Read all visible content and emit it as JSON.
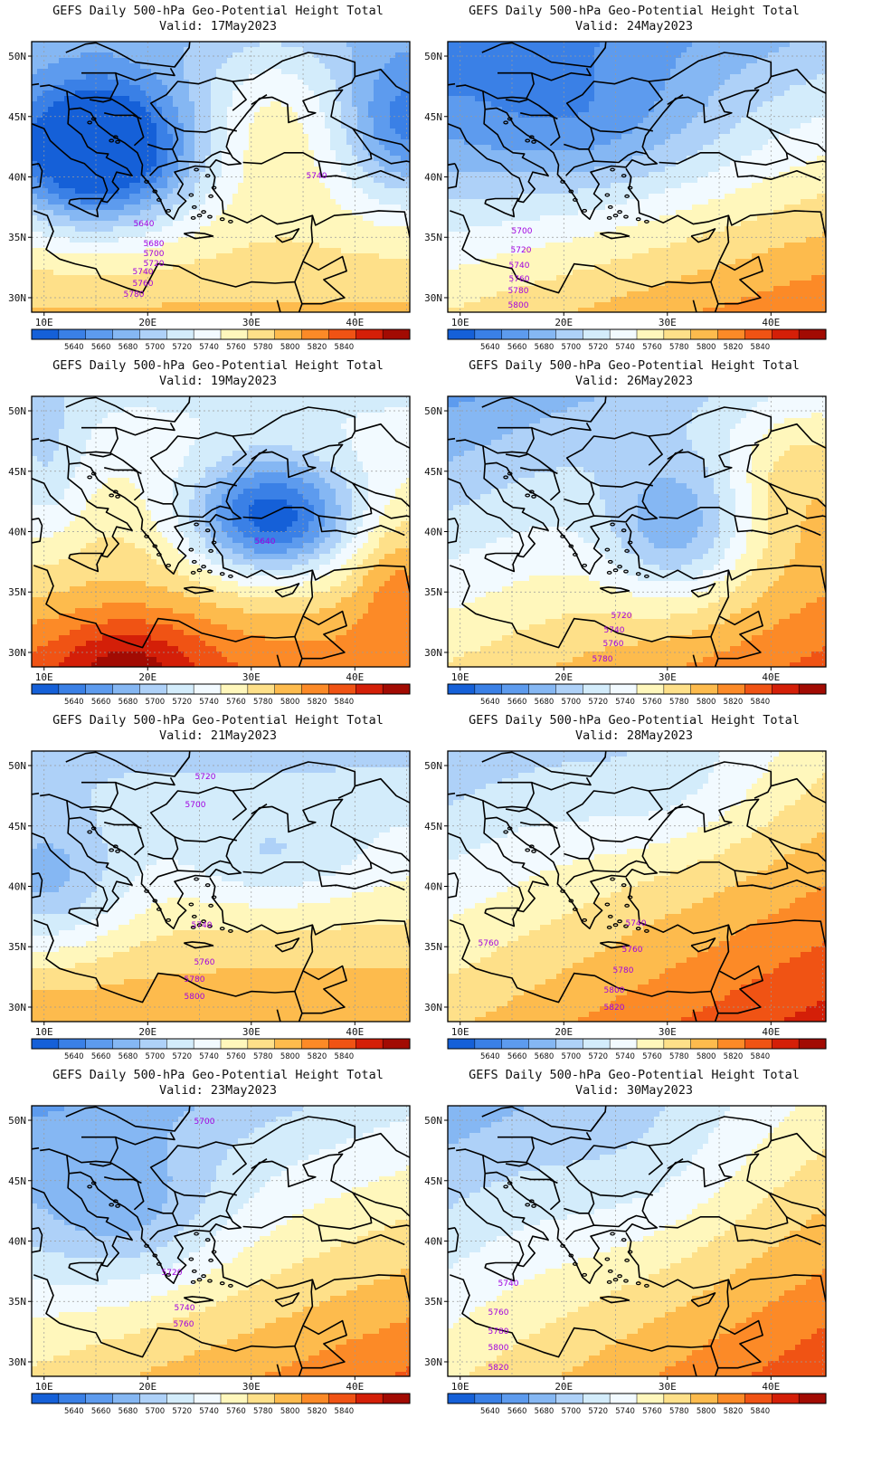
{
  "panel_title": "GEFS Daily 500-hPa Geo-Potential Height Total",
  "valid_prefix": "Valid:",
  "lat_labels": [
    "50N",
    "45N",
    "40N",
    "35N",
    "30N"
  ],
  "lon_labels": [
    "10E",
    "20E",
    "30E",
    "40E"
  ],
  "colorbar": {
    "colors": [
      "#1560d8",
      "#3a80e6",
      "#5d9bee",
      "#85b7f3",
      "#aed1f8",
      "#d3ecfb",
      "#f2faff",
      "#fff7bc",
      "#fee089",
      "#fdbb4d",
      "#fc8a27",
      "#f05314",
      "#d41f08",
      "#a20b03"
    ],
    "labels": [
      "5640",
      "5660",
      "5680",
      "5700",
      "5720",
      "5740",
      "5760",
      "5780",
      "5800",
      "5820",
      "5840"
    ]
  },
  "contour_color": "#a100e0",
  "panels": [
    {
      "valid": "17May2023",
      "contour_labels": [
        "5740",
        "5640",
        "5680",
        "5700",
        "5720",
        "5740",
        "5760",
        "5780"
      ]
    },
    {
      "valid": "24May2023",
      "contour_labels": [
        "5700",
        "5720",
        "5740",
        "5760",
        "5780",
        "5800"
      ]
    },
    {
      "valid": "19May2023",
      "contour_labels": [
        "5640"
      ]
    },
    {
      "valid": "26May2023",
      "contour_labels": [
        "5720",
        "5740",
        "5760",
        "5780"
      ]
    },
    {
      "valid": "21May2023",
      "contour_labels": [
        "5720",
        "5700",
        "5740",
        "5760",
        "5780",
        "5800"
      ]
    },
    {
      "valid": "28May2023",
      "contour_labels": [
        "5740",
        "5760",
        "5760",
        "5780",
        "5800",
        "5820"
      ]
    },
    {
      "valid": "23May2023",
      "contour_labels": [
        "5700",
        "5720",
        "5740",
        "5760"
      ]
    },
    {
      "valid": "30May2023",
      "contour_labels": [
        "5740",
        "5760",
        "5780",
        "5800",
        "5820"
      ]
    }
  ]
}
